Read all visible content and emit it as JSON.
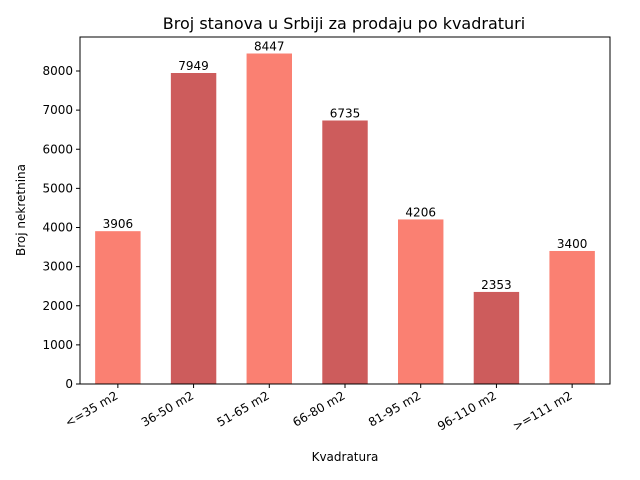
{
  "chart_data": {
    "type": "bar",
    "title": "Broj stanova u Srbiji za prodaju po kvadraturi",
    "xlabel": "Kvadratura",
    "ylabel": "Broj nekretnina",
    "categories": [
      "<=35 m2",
      "36-50 m2",
      "51-65 m2",
      "66-80 m2",
      "81-95 m2",
      "96-110 m2",
      ">=111 m2"
    ],
    "values": [
      3906,
      7949,
      8447,
      6735,
      4206,
      2353,
      3400
    ],
    "bar_colors": [
      "#fa8072",
      "#cd5c5c",
      "#fa8072",
      "#cd5c5c",
      "#fa8072",
      "#cd5c5c",
      "#fa8072"
    ],
    "ylim": [
      0,
      8869
    ],
    "yticks": [
      0,
      1000,
      2000,
      3000,
      4000,
      5000,
      6000,
      7000,
      8000
    ],
    "ytick_labels": [
      "0",
      "1000",
      "2000",
      "3000",
      "4000",
      "5000",
      "6000",
      "7000",
      "8000"
    ],
    "data_labels": [
      "3906",
      "7949",
      "8447",
      "6735",
      "4206",
      "2353",
      "3400"
    ],
    "grid": false,
    "legend": "none"
  }
}
